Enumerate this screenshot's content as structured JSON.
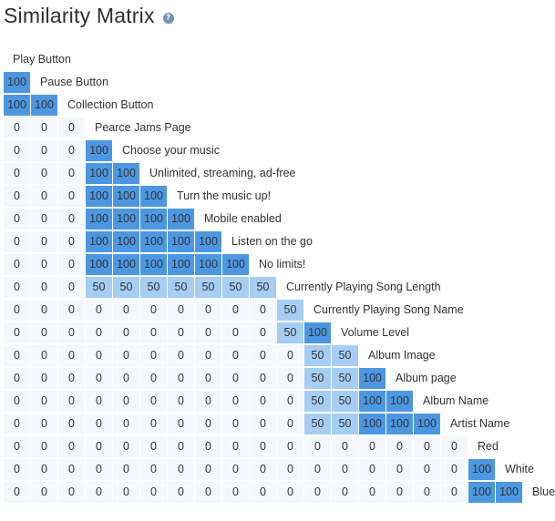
{
  "title": "Similarity Matrix",
  "help_glyph": "?",
  "colors": {
    "level_100": "#4c97e2",
    "level_50": "#a6cdf3",
    "level_0": "#f4f8fd",
    "gridline": "#ffffff",
    "text": "#333333"
  },
  "items": [
    "Play Button",
    "Pause Button",
    "Collection Button",
    "Pearce Jams Page",
    "Choose your music",
    "Unlimited, streaming, ad-free",
    "Turn the music up!",
    "Mobile enabled",
    "Listen on the go",
    "No limits!",
    "Currently Playing Song Length",
    "Currently Playing Song Name",
    "Volume Level",
    "Album Image",
    "Album page",
    "Album Name",
    "Artist Name",
    "Red",
    "White",
    "Blue"
  ],
  "matrix": [
    [],
    [
      100
    ],
    [
      100,
      100
    ],
    [
      0,
      0,
      0
    ],
    [
      0,
      0,
      0,
      100
    ],
    [
      0,
      0,
      0,
      100,
      100
    ],
    [
      0,
      0,
      0,
      100,
      100,
      100
    ],
    [
      0,
      0,
      0,
      100,
      100,
      100,
      100
    ],
    [
      0,
      0,
      0,
      100,
      100,
      100,
      100,
      100
    ],
    [
      0,
      0,
      0,
      100,
      100,
      100,
      100,
      100,
      100
    ],
    [
      0,
      0,
      0,
      50,
      50,
      50,
      50,
      50,
      50,
      50
    ],
    [
      0,
      0,
      0,
      0,
      0,
      0,
      0,
      0,
      0,
      0,
      50
    ],
    [
      0,
      0,
      0,
      0,
      0,
      0,
      0,
      0,
      0,
      0,
      50,
      100
    ],
    [
      0,
      0,
      0,
      0,
      0,
      0,
      0,
      0,
      0,
      0,
      0,
      50,
      50
    ],
    [
      0,
      0,
      0,
      0,
      0,
      0,
      0,
      0,
      0,
      0,
      0,
      50,
      50,
      100
    ],
    [
      0,
      0,
      0,
      0,
      0,
      0,
      0,
      0,
      0,
      0,
      0,
      50,
      50,
      100,
      100
    ],
    [
      0,
      0,
      0,
      0,
      0,
      0,
      0,
      0,
      0,
      0,
      0,
      50,
      50,
      100,
      100,
      100
    ],
    [
      0,
      0,
      0,
      0,
      0,
      0,
      0,
      0,
      0,
      0,
      0,
      0,
      0,
      0,
      0,
      0,
      0
    ],
    [
      0,
      0,
      0,
      0,
      0,
      0,
      0,
      0,
      0,
      0,
      0,
      0,
      0,
      0,
      0,
      0,
      0,
      100
    ],
    [
      0,
      0,
      0,
      0,
      0,
      0,
      0,
      0,
      0,
      0,
      0,
      0,
      0,
      0,
      0,
      0,
      0,
      100,
      100
    ]
  ]
}
